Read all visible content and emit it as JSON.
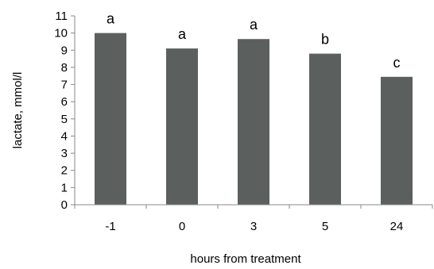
{
  "chart_data": {
    "type": "bar",
    "categories": [
      "-1",
      "0",
      "3",
      "5",
      "24"
    ],
    "values": [
      10.0,
      9.1,
      9.65,
      8.8,
      7.45
    ],
    "annotations": [
      "a",
      "a",
      "a",
      "b",
      "c"
    ],
    "xlabel": "hours from treatment",
    "ylabel": "lactate, mmol/l",
    "ylim": [
      0,
      11
    ],
    "yticks": [
      "0",
      "1",
      "2",
      "3",
      "4",
      "5",
      "6",
      "7",
      "8",
      "9",
      "10",
      "11"
    ],
    "bar_color": "#5b605f",
    "axis_color": "#888888",
    "grid": false,
    "legend": "none"
  }
}
